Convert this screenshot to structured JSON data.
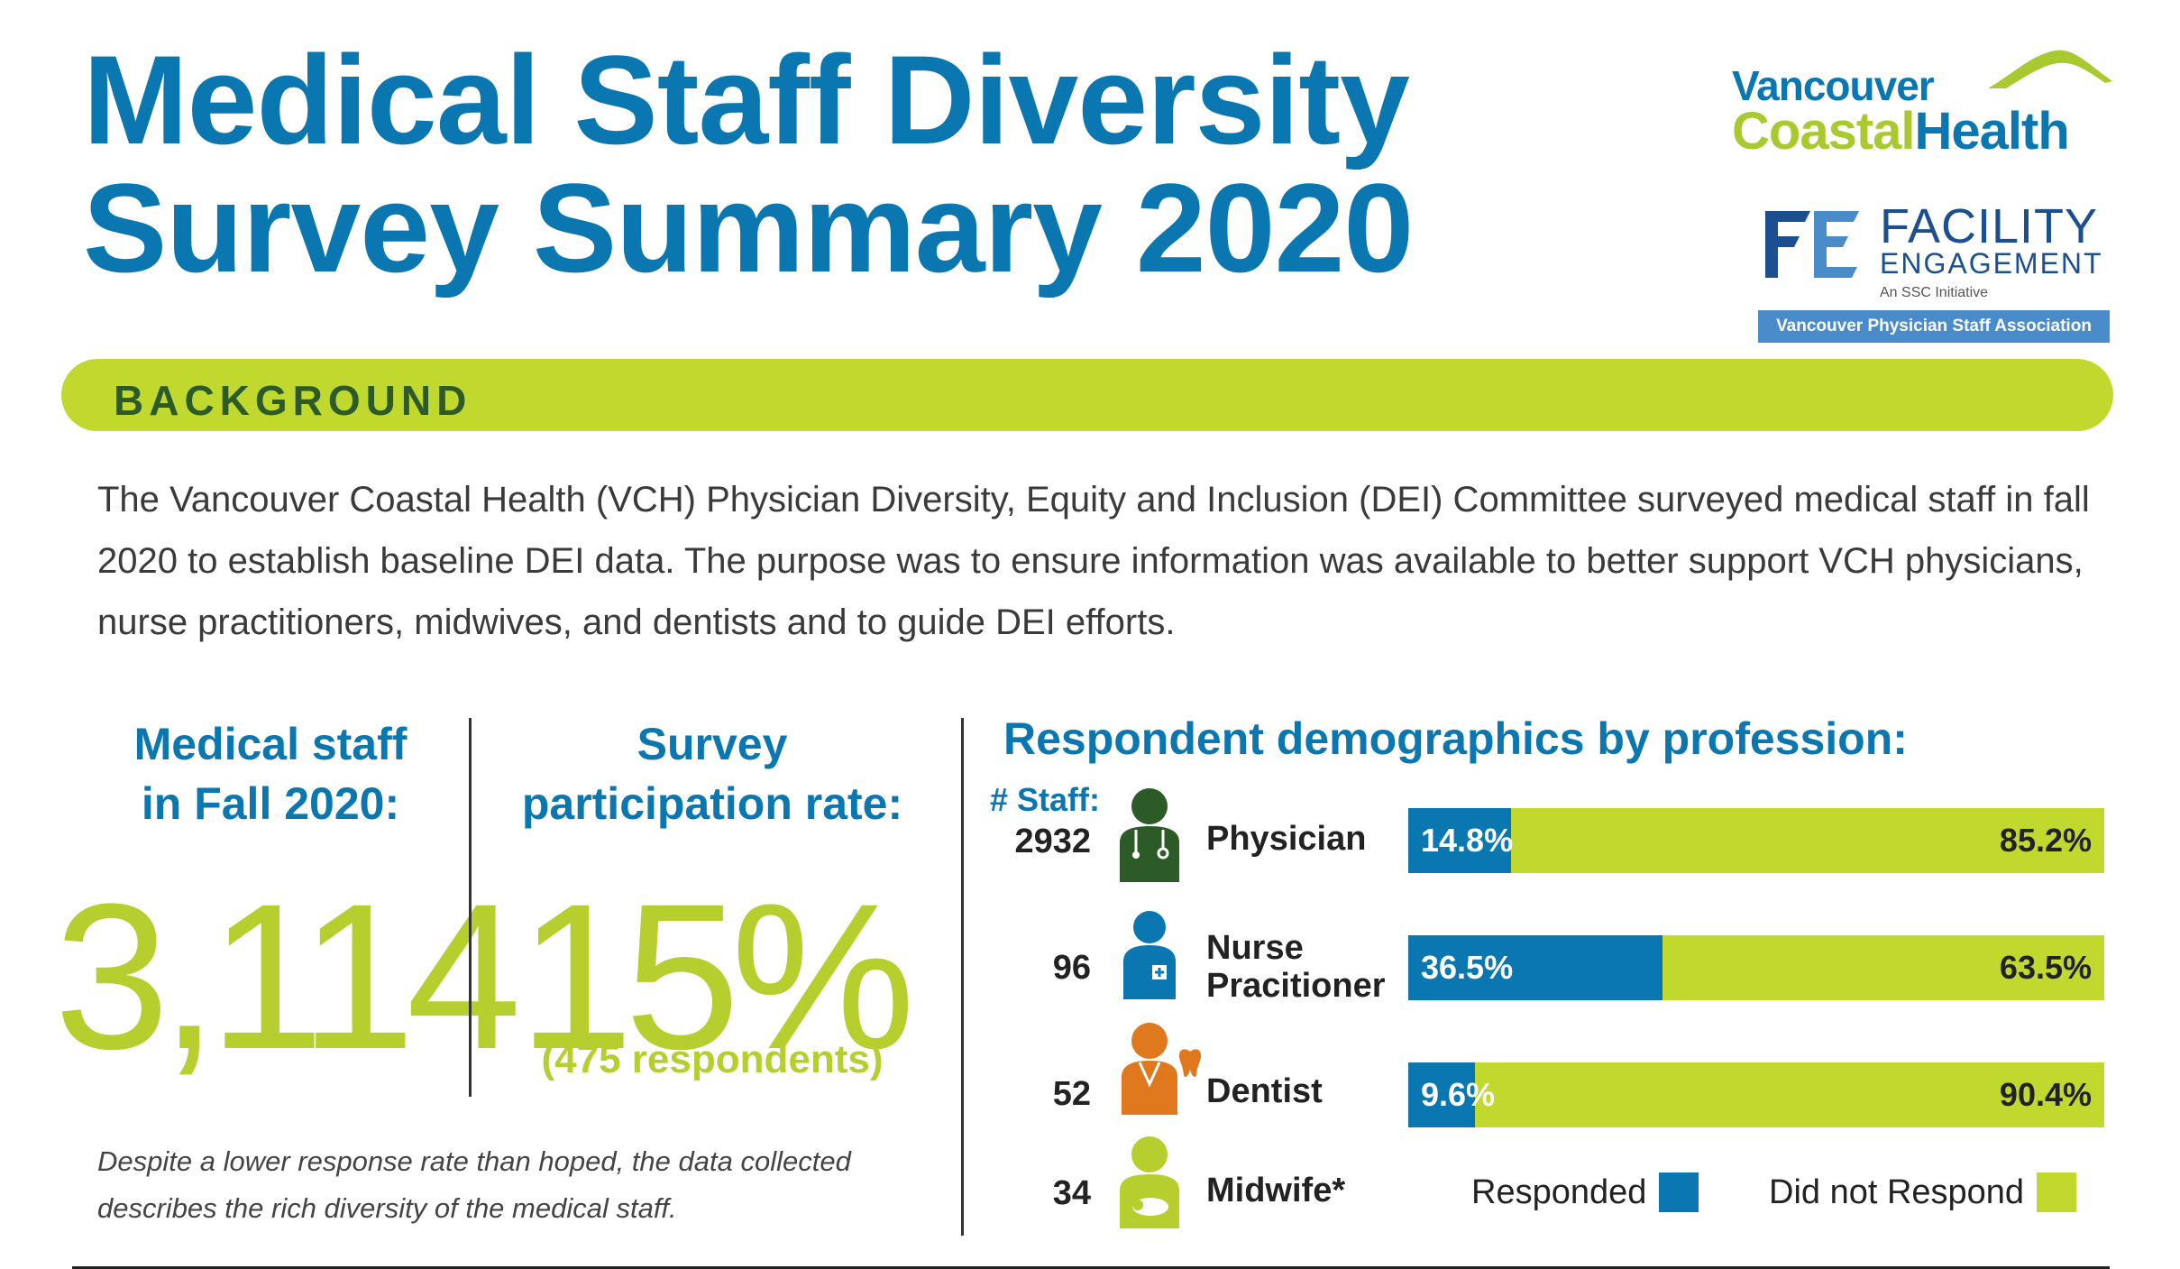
{
  "title": {
    "line1": "Medical Staff Diversity",
    "line2": "Survey Summary 2020"
  },
  "logos": {
    "vch_line1": "Vancouver",
    "vch_line2a": "Coastal",
    "vch_line2b": "Health",
    "fe_word1": "FACILITY",
    "fe_word2": "ENGAGEMENT",
    "fe_ssc": "An SSC Initiative",
    "fe_bar": "Vancouver Physician Staff Association"
  },
  "background": {
    "label": "BACKGROUND",
    "text": "The Vancouver Coastal Health (VCH) Physician Diversity, Equity and Inclusion (DEI) Committee surveyed medical staff in fall 2020 to establish baseline DEI data. The purpose was to ensure information was available to better support VCH physicians, nurse practitioners, midwives, and dentists and to guide DEI efforts."
  },
  "stats": {
    "staff_head_1": "Medical staff",
    "staff_head_2": "in Fall 2020:",
    "staff_value": "3,114",
    "rate_head_1": "Survey",
    "rate_head_2": "participation rate:",
    "rate_value": "15%",
    "rate_sub": "(475 respondents)",
    "note": "Despite a lower response rate than hoped, the data collected describes the rich diversity of the medical staff."
  },
  "demographics": {
    "title": "Respondent demographics by profession:",
    "staff_label": "# Staff:",
    "rows": [
      {
        "count": "2932",
        "profession": "Physician",
        "responded": 14.8,
        "responded_label": "14.8%",
        "not_label": "85.2%",
        "icon": "physician-icon",
        "color": "#2d5b27"
      },
      {
        "count": "96",
        "profession_1": "Nurse",
        "profession_2": "Pracitioner",
        "responded": 36.5,
        "responded_label": "36.5%",
        "not_label": "63.5%",
        "icon": "nurse-icon",
        "color": "#0a77b0"
      },
      {
        "count": "52",
        "profession": "Dentist",
        "responded": 9.6,
        "responded_label": "9.6%",
        "not_label": "90.4%",
        "icon": "dentist-icon",
        "color": "#e0781e"
      },
      {
        "count": "34",
        "profession": "Midwife*",
        "icon": "midwife-icon",
        "color": "#b6cf2e"
      }
    ],
    "legend": {
      "responded": "Responded",
      "not_responded": "Did not Respond"
    },
    "colors": {
      "responded": "#0a77b0",
      "not_responded": "#c1d82f"
    }
  }
}
